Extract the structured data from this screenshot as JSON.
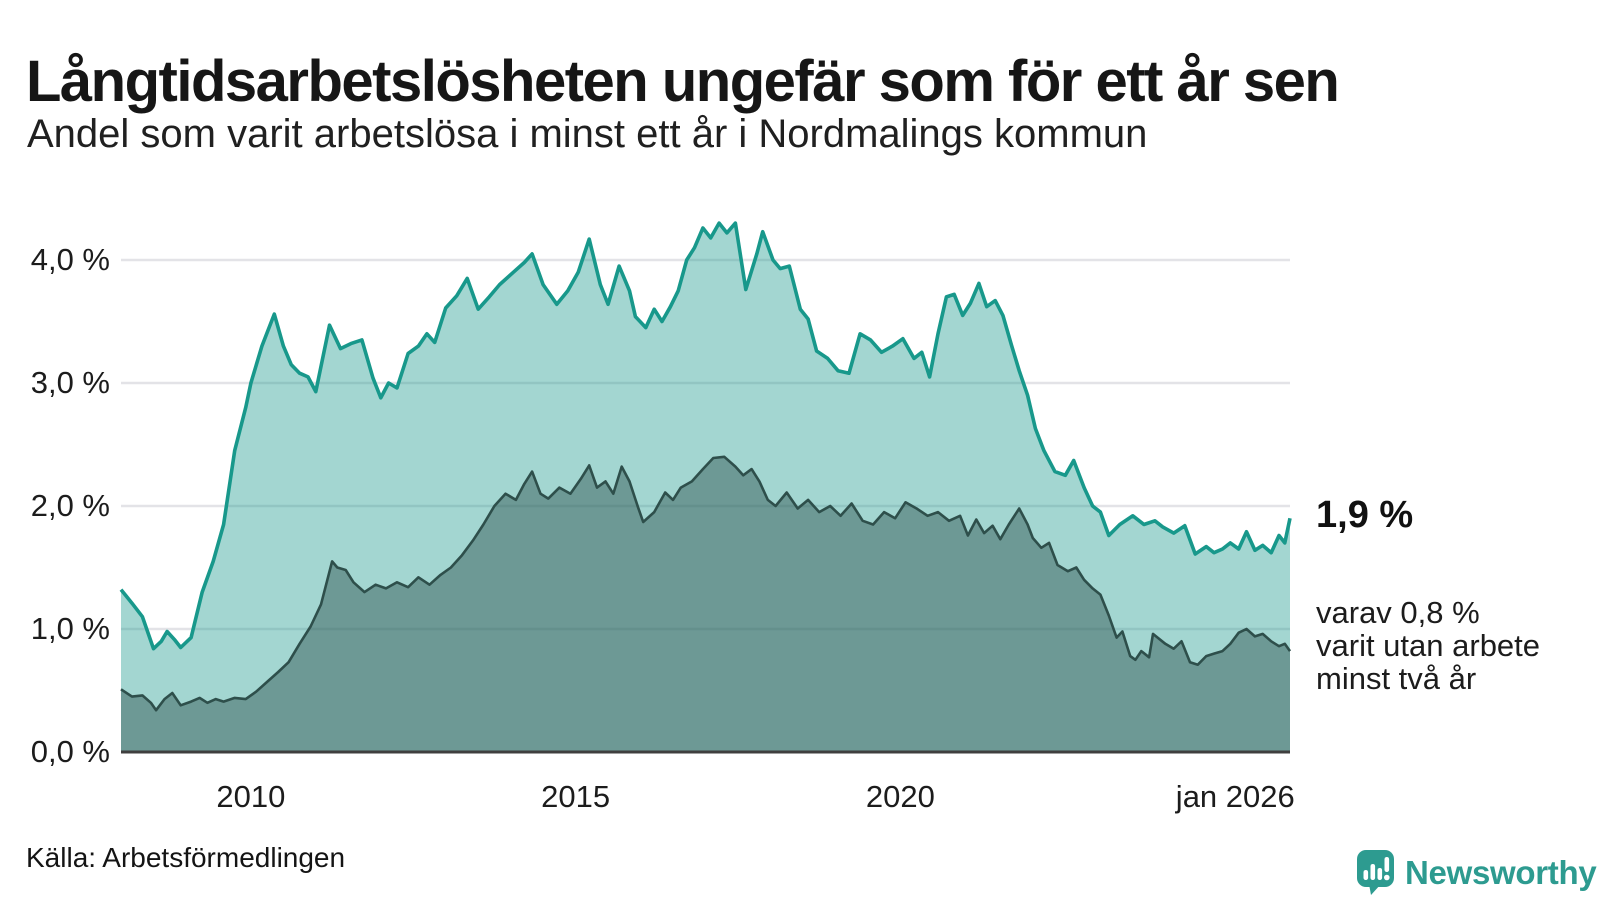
{
  "header": {
    "title": "Långtidsarbetslösheten ungefär som för ett år sen",
    "subtitle": "Andel som varit arbetslösa i minst ett år i Nordmalings kommun"
  },
  "footer": {
    "source": "Källa: Arbetsförmedlingen"
  },
  "brand": {
    "name": "Newsworthy",
    "color": "#2d9b90"
  },
  "chart_data": {
    "type": "area",
    "title": "Långtidsarbetslösheten ungefär som för ett år sen",
    "subtitle": "Andel som varit arbetslösa i minst ett år i Nordmalings kommun",
    "xlabel": "",
    "ylabel": "",
    "xlim": [
      2008,
      2026
    ],
    "ylim": [
      0,
      4.35
    ],
    "grid": true,
    "legend_position": "none",
    "colors": {
      "grid": "#e3e3e7",
      "baseline": "#3f3f3f",
      "series1_line": "#18988b",
      "series1_fill": "rgba(26,153,139,0.40)",
      "series2_line": "#2e4f4b",
      "series2_fill": "rgba(44,79,76,0.45)",
      "brand_teal": "#2d9b90"
    },
    "y_ticks": [
      {
        "v": 4,
        "label": "4,0 %"
      },
      {
        "v": 3,
        "label": "3,0 %"
      },
      {
        "v": 2,
        "label": "2,0 %"
      },
      {
        "v": 1,
        "label": "1,0 %"
      },
      {
        "v": 0,
        "label": "0,0 %"
      }
    ],
    "x_ticks": [
      {
        "t": 2010,
        "label": "2010",
        "align": "center"
      },
      {
        "t": 2015,
        "label": "2015",
        "align": "center"
      },
      {
        "t": 2020,
        "label": "2020",
        "align": "center"
      },
      {
        "t": 2026,
        "label": "jan 2026",
        "align": "right"
      }
    ],
    "annotations": {
      "end_label": "1,9 %",
      "secondary": [
        "varav 0,8 %",
        "varit utan arbete",
        "minst två år"
      ]
    },
    "series": [
      {
        "name": "Arbetslösa minst ett år",
        "end_value": 1.9,
        "points": [
          [
            2008.0,
            1.32
          ],
          [
            2008.17,
            1.21
          ],
          [
            2008.33,
            1.1
          ],
          [
            2008.5,
            0.84
          ],
          [
            2008.62,
            0.9
          ],
          [
            2008.71,
            0.98
          ],
          [
            2008.83,
            0.91
          ],
          [
            2008.92,
            0.85
          ],
          [
            2009.08,
            0.93
          ],
          [
            2009.25,
            1.3
          ],
          [
            2009.42,
            1.55
          ],
          [
            2009.58,
            1.85
          ],
          [
            2009.75,
            2.45
          ],
          [
            2009.92,
            2.8
          ],
          [
            2010.0,
            3.0
          ],
          [
            2010.17,
            3.3
          ],
          [
            2010.36,
            3.56
          ],
          [
            2010.5,
            3.3
          ],
          [
            2010.62,
            3.15
          ],
          [
            2010.75,
            3.08
          ],
          [
            2010.88,
            3.05
          ],
          [
            2011.0,
            2.93
          ],
          [
            2011.21,
            3.47
          ],
          [
            2011.38,
            3.28
          ],
          [
            2011.54,
            3.32
          ],
          [
            2011.71,
            3.35
          ],
          [
            2011.88,
            3.04
          ],
          [
            2012.0,
            2.88
          ],
          [
            2012.12,
            3.0
          ],
          [
            2012.25,
            2.96
          ],
          [
            2012.42,
            3.24
          ],
          [
            2012.58,
            3.3
          ],
          [
            2012.71,
            3.4
          ],
          [
            2012.83,
            3.33
          ],
          [
            2013.0,
            3.61
          ],
          [
            2013.17,
            3.71
          ],
          [
            2013.33,
            3.85
          ],
          [
            2013.5,
            3.6
          ],
          [
            2013.67,
            3.7
          ],
          [
            2013.83,
            3.8
          ],
          [
            2014.04,
            3.9
          ],
          [
            2014.21,
            3.98
          ],
          [
            2014.33,
            4.05
          ],
          [
            2014.5,
            3.8
          ],
          [
            2014.71,
            3.64
          ],
          [
            2014.88,
            3.75
          ],
          [
            2015.04,
            3.9
          ],
          [
            2015.21,
            4.17
          ],
          [
            2015.38,
            3.8
          ],
          [
            2015.5,
            3.64
          ],
          [
            2015.67,
            3.95
          ],
          [
            2015.83,
            3.75
          ],
          [
            2015.92,
            3.54
          ],
          [
            2016.08,
            3.45
          ],
          [
            2016.21,
            3.6
          ],
          [
            2016.33,
            3.5
          ],
          [
            2016.46,
            3.62
          ],
          [
            2016.58,
            3.75
          ],
          [
            2016.71,
            4.0
          ],
          [
            2016.83,
            4.1
          ],
          [
            2016.96,
            4.26
          ],
          [
            2017.08,
            4.18
          ],
          [
            2017.21,
            4.3
          ],
          [
            2017.33,
            4.22
          ],
          [
            2017.46,
            4.3
          ],
          [
            2017.62,
            3.76
          ],
          [
            2017.79,
            4.05
          ],
          [
            2017.88,
            4.23
          ],
          [
            2018.04,
            4.0
          ],
          [
            2018.15,
            3.93
          ],
          [
            2018.29,
            3.95
          ],
          [
            2018.46,
            3.6
          ],
          [
            2018.58,
            3.52
          ],
          [
            2018.71,
            3.26
          ],
          [
            2018.88,
            3.2
          ],
          [
            2019.04,
            3.1
          ],
          [
            2019.21,
            3.08
          ],
          [
            2019.38,
            3.4
          ],
          [
            2019.54,
            3.35
          ],
          [
            2019.71,
            3.25
          ],
          [
            2019.88,
            3.3
          ],
          [
            2020.04,
            3.36
          ],
          [
            2020.21,
            3.2
          ],
          [
            2020.33,
            3.25
          ],
          [
            2020.45,
            3.05
          ],
          [
            2020.58,
            3.4
          ],
          [
            2020.71,
            3.7
          ],
          [
            2020.83,
            3.72
          ],
          [
            2020.96,
            3.55
          ],
          [
            2021.08,
            3.65
          ],
          [
            2021.21,
            3.81
          ],
          [
            2021.33,
            3.62
          ],
          [
            2021.46,
            3.67
          ],
          [
            2021.58,
            3.55
          ],
          [
            2021.71,
            3.31
          ],
          [
            2021.83,
            3.1
          ],
          [
            2021.96,
            2.9
          ],
          [
            2022.08,
            2.63
          ],
          [
            2022.21,
            2.45
          ],
          [
            2022.38,
            2.28
          ],
          [
            2022.54,
            2.25
          ],
          [
            2022.67,
            2.37
          ],
          [
            2022.83,
            2.15
          ],
          [
            2022.96,
            2.0
          ],
          [
            2023.08,
            1.95
          ],
          [
            2023.21,
            1.76
          ],
          [
            2023.38,
            1.85
          ],
          [
            2023.58,
            1.92
          ],
          [
            2023.75,
            1.85
          ],
          [
            2023.92,
            1.88
          ],
          [
            2024.04,
            1.83
          ],
          [
            2024.21,
            1.78
          ],
          [
            2024.38,
            1.84
          ],
          [
            2024.54,
            1.61
          ],
          [
            2024.71,
            1.67
          ],
          [
            2024.83,
            1.62
          ],
          [
            2024.96,
            1.65
          ],
          [
            2025.08,
            1.7
          ],
          [
            2025.21,
            1.65
          ],
          [
            2025.33,
            1.79
          ],
          [
            2025.46,
            1.64
          ],
          [
            2025.58,
            1.68
          ],
          [
            2025.71,
            1.62
          ],
          [
            2025.83,
            1.76
          ],
          [
            2025.92,
            1.7
          ],
          [
            2026.0,
            1.9
          ]
        ]
      },
      {
        "name": "varav arbetslösa minst två år",
        "end_value": 0.8,
        "points": [
          [
            2008.0,
            0.51
          ],
          [
            2008.17,
            0.45
          ],
          [
            2008.33,
            0.46
          ],
          [
            2008.46,
            0.4
          ],
          [
            2008.54,
            0.34
          ],
          [
            2008.67,
            0.43
          ],
          [
            2008.79,
            0.48
          ],
          [
            2008.92,
            0.38
          ],
          [
            2009.08,
            0.41
          ],
          [
            2009.21,
            0.44
          ],
          [
            2009.33,
            0.4
          ],
          [
            2009.46,
            0.43
          ],
          [
            2009.58,
            0.41
          ],
          [
            2009.75,
            0.44
          ],
          [
            2009.92,
            0.43
          ],
          [
            2010.08,
            0.49
          ],
          [
            2010.25,
            0.57
          ],
          [
            2010.42,
            0.65
          ],
          [
            2010.58,
            0.73
          ],
          [
            2010.75,
            0.88
          ],
          [
            2010.92,
            1.02
          ],
          [
            2011.08,
            1.2
          ],
          [
            2011.25,
            1.55
          ],
          [
            2011.33,
            1.5
          ],
          [
            2011.46,
            1.48
          ],
          [
            2011.58,
            1.38
          ],
          [
            2011.75,
            1.3
          ],
          [
            2011.92,
            1.36
          ],
          [
            2012.08,
            1.33
          ],
          [
            2012.25,
            1.38
          ],
          [
            2012.42,
            1.34
          ],
          [
            2012.58,
            1.42
          ],
          [
            2012.75,
            1.36
          ],
          [
            2012.92,
            1.44
          ],
          [
            2013.08,
            1.5
          ],
          [
            2013.25,
            1.6
          ],
          [
            2013.42,
            1.72
          ],
          [
            2013.58,
            1.85
          ],
          [
            2013.75,
            2.0
          ],
          [
            2013.92,
            2.1
          ],
          [
            2014.08,
            2.05
          ],
          [
            2014.21,
            2.18
          ],
          [
            2014.33,
            2.28
          ],
          [
            2014.46,
            2.1
          ],
          [
            2014.58,
            2.06
          ],
          [
            2014.75,
            2.15
          ],
          [
            2014.92,
            2.1
          ],
          [
            2015.08,
            2.22
          ],
          [
            2015.21,
            2.33
          ],
          [
            2015.33,
            2.15
          ],
          [
            2015.46,
            2.2
          ],
          [
            2015.58,
            2.1
          ],
          [
            2015.71,
            2.32
          ],
          [
            2015.83,
            2.2
          ],
          [
            2015.96,
            1.99
          ],
          [
            2016.04,
            1.87
          ],
          [
            2016.21,
            1.95
          ],
          [
            2016.38,
            2.11
          ],
          [
            2016.5,
            2.05
          ],
          [
            2016.62,
            2.15
          ],
          [
            2016.79,
            2.2
          ],
          [
            2016.96,
            2.3
          ],
          [
            2017.12,
            2.39
          ],
          [
            2017.29,
            2.4
          ],
          [
            2017.46,
            2.32
          ],
          [
            2017.58,
            2.25
          ],
          [
            2017.71,
            2.3
          ],
          [
            2017.83,
            2.2
          ],
          [
            2017.96,
            2.05
          ],
          [
            2018.08,
            2.0
          ],
          [
            2018.25,
            2.11
          ],
          [
            2018.42,
            1.98
          ],
          [
            2018.58,
            2.05
          ],
          [
            2018.75,
            1.95
          ],
          [
            2018.92,
            2.0
          ],
          [
            2019.08,
            1.92
          ],
          [
            2019.25,
            2.02
          ],
          [
            2019.42,
            1.88
          ],
          [
            2019.58,
            1.85
          ],
          [
            2019.75,
            1.95
          ],
          [
            2019.92,
            1.9
          ],
          [
            2020.08,
            2.03
          ],
          [
            2020.25,
            1.98
          ],
          [
            2020.42,
            1.92
          ],
          [
            2020.58,
            1.95
          ],
          [
            2020.75,
            1.88
          ],
          [
            2020.92,
            1.92
          ],
          [
            2021.04,
            1.76
          ],
          [
            2021.17,
            1.89
          ],
          [
            2021.29,
            1.78
          ],
          [
            2021.42,
            1.84
          ],
          [
            2021.54,
            1.73
          ],
          [
            2021.67,
            1.85
          ],
          [
            2021.83,
            1.98
          ],
          [
            2021.96,
            1.85
          ],
          [
            2022.04,
            1.74
          ],
          [
            2022.17,
            1.66
          ],
          [
            2022.29,
            1.7
          ],
          [
            2022.42,
            1.52
          ],
          [
            2022.58,
            1.47
          ],
          [
            2022.71,
            1.5
          ],
          [
            2022.83,
            1.4
          ],
          [
            2022.96,
            1.33
          ],
          [
            2023.08,
            1.28
          ],
          [
            2023.21,
            1.11
          ],
          [
            2023.33,
            0.93
          ],
          [
            2023.42,
            0.98
          ],
          [
            2023.54,
            0.78
          ],
          [
            2023.62,
            0.75
          ],
          [
            2023.71,
            0.82
          ],
          [
            2023.83,
            0.77
          ],
          [
            2023.89,
            0.96
          ],
          [
            2024.08,
            0.88
          ],
          [
            2024.21,
            0.84
          ],
          [
            2024.33,
            0.9
          ],
          [
            2024.46,
            0.73
          ],
          [
            2024.58,
            0.71
          ],
          [
            2024.71,
            0.78
          ],
          [
            2024.83,
            0.8
          ],
          [
            2024.96,
            0.82
          ],
          [
            2025.08,
            0.88
          ],
          [
            2025.21,
            0.97
          ],
          [
            2025.33,
            1.0
          ],
          [
            2025.46,
            0.94
          ],
          [
            2025.58,
            0.96
          ],
          [
            2025.71,
            0.9
          ],
          [
            2025.83,
            0.86
          ],
          [
            2025.92,
            0.88
          ],
          [
            2026.0,
            0.82
          ]
        ]
      }
    ]
  }
}
